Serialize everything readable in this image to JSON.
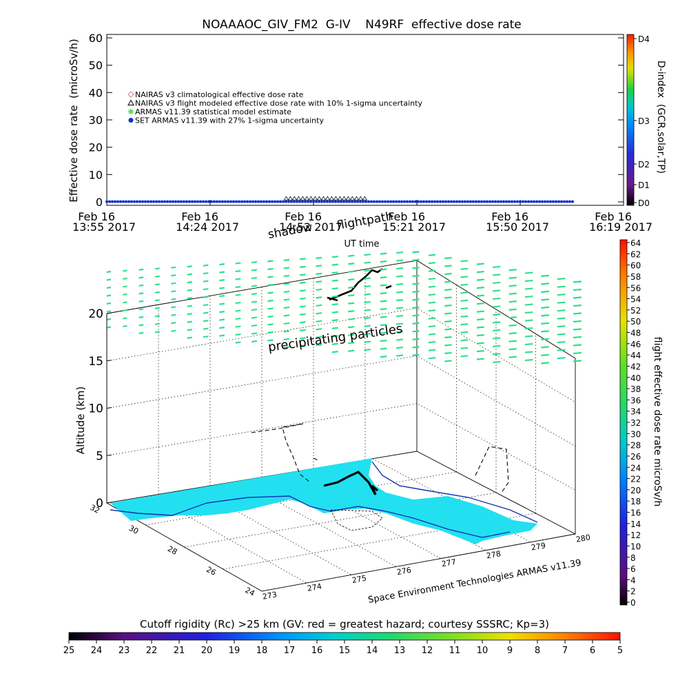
{
  "chart_data": [
    {
      "type": "scatter",
      "title": "NOAAAOC_GIV_FM2  G-IV    N49RF  effective dose rate",
      "xlabel": "UT time",
      "ylabel": "Effective dose rate  (microSv/h)",
      "ylim": [
        0,
        60
      ],
      "yticks": [
        0,
        10,
        20,
        30,
        40,
        50,
        60
      ],
      "xticks": [
        {
          "line1": "Feb 16",
          "line2": "13:55 2017"
        },
        {
          "line1": "Feb 16",
          "line2": "14:24 2017"
        },
        {
          "line1": "Feb 16",
          "line2": "14:52 2017"
        },
        {
          "line1": "Feb 16",
          "line2": "15:21 2017"
        },
        {
          "line1": "Feb 16",
          "line2": "15:50 2017"
        },
        {
          "line1": "Feb 16",
          "line2": "16:19 2017"
        }
      ],
      "legend": [
        {
          "name": "NAIRAS v3 climatological effective dose rate",
          "symbol": "diamond",
          "color": "#d98080"
        },
        {
          "name": "NAIRAS v3 flight modeled effective dose rate with 10% 1-sigma uncertainty",
          "symbol": "triangle",
          "color": "#000000"
        },
        {
          "name": "ARMAS v11.39 statistical model estimate",
          "symbol": "asterisk",
          "color": "#55dd55"
        },
        {
          "name": "SET ARMAS v11.39 with 27% 1-sigma uncertainty",
          "symbol": "dot",
          "color": "#1030d0"
        }
      ],
      "legend_position": "upper-left",
      "series": [
        {
          "name": "NAIRAS v3 flight modeled effective dose rate with 10% 1-sigma uncertainty",
          "x_minutes_range": [
            "14:45",
            "15:08"
          ],
          "values_approx": 0.7
        },
        {
          "name": "SET ARMAS v11.39 with 27% 1-sigma uncertainty",
          "x_minutes_range": [
            "13:55",
            "16:05"
          ],
          "values_approx": 0.1
        }
      ],
      "colorbar": {
        "label": "D-index  (GCR,solar,TP)",
        "ticks": [
          "D0",
          "D1",
          "D2",
          "D3",
          "D4"
        ]
      }
    },
    {
      "type": "scatter",
      "zlabel": "Altitude (km)",
      "zticks": [
        0,
        5,
        10,
        15,
        20
      ],
      "lat_ticks": [
        "32",
        "30",
        "28",
        "26",
        "24"
      ],
      "lon_ticks": [
        "273",
        "274",
        "275",
        "276",
        "277",
        "278",
        "279",
        "280"
      ],
      "annotations": [
        "shadow",
        "flightpath",
        "precipitating particles"
      ],
      "credit": "Space Environment Technologies ARMAS v11.39",
      "particle_color": "#2ee08a",
      "colorbar": {
        "label": "flight effective dose rate microSv/h",
        "min": 0,
        "max": 64,
        "step": 2
      }
    }
  ],
  "bottom_colorbar": {
    "title": "Cutoff rigidity (Rc) >25 km (GV: red = greatest hazard; courtesy SSSRC; Kp=3)",
    "ticks": [
      "25",
      "24",
      "23",
      "22",
      "21",
      "20",
      "19",
      "18",
      "17",
      "16",
      "15",
      "14",
      "13",
      "12",
      "11",
      "10",
      "9",
      "8",
      "7",
      "6",
      "5"
    ]
  }
}
